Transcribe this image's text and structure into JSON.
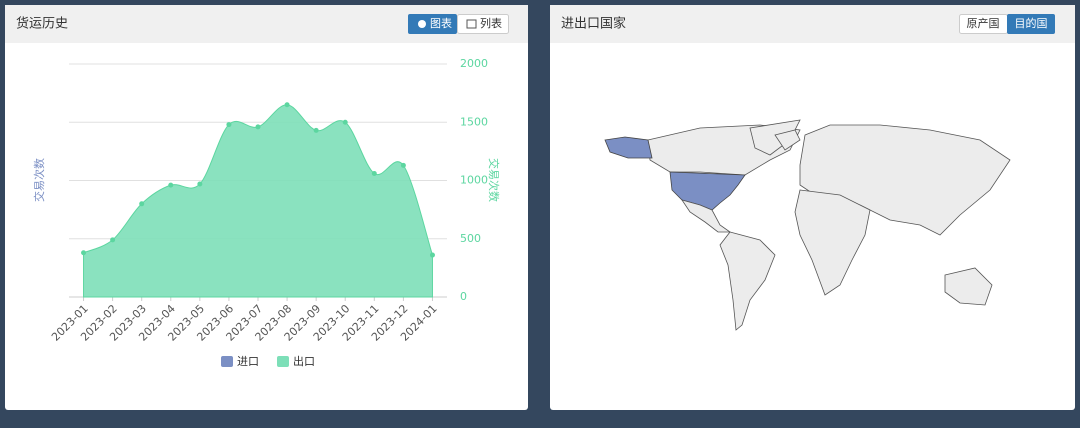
{
  "left_panel": {
    "title": "货运历史",
    "buttons": [
      "图表",
      "列表"
    ],
    "chart": {
      "type": "area",
      "categories": [
        "2023-01",
        "2023-02",
        "2023-03",
        "2023-04",
        "2023-05",
        "2023-06",
        "2023-07",
        "2023-08",
        "2023-09",
        "2023-10",
        "2023-11",
        "2023-12",
        "2024-01"
      ],
      "ylabel": "交易次数",
      "y2label": "交易次数",
      "y2lim": [
        0,
        2000
      ],
      "y2ticks": [
        0,
        500,
        1000,
        1500,
        2000
      ],
      "grid": true,
      "series": [
        {
          "name": "进口",
          "color": "#7b8fc4"
        },
        {
          "name": "出口",
          "color": "#7ddfb8",
          "axis": "y2",
          "values": [
            380,
            490,
            800,
            960,
            970,
            1480,
            1460,
            1650,
            1430,
            1500,
            1060,
            1130,
            360
          ]
        }
      ]
    }
  },
  "right_panel": {
    "title": "进出口国家",
    "buttons": [
      "原产国",
      "目的国"
    ],
    "active_button": 1
  }
}
